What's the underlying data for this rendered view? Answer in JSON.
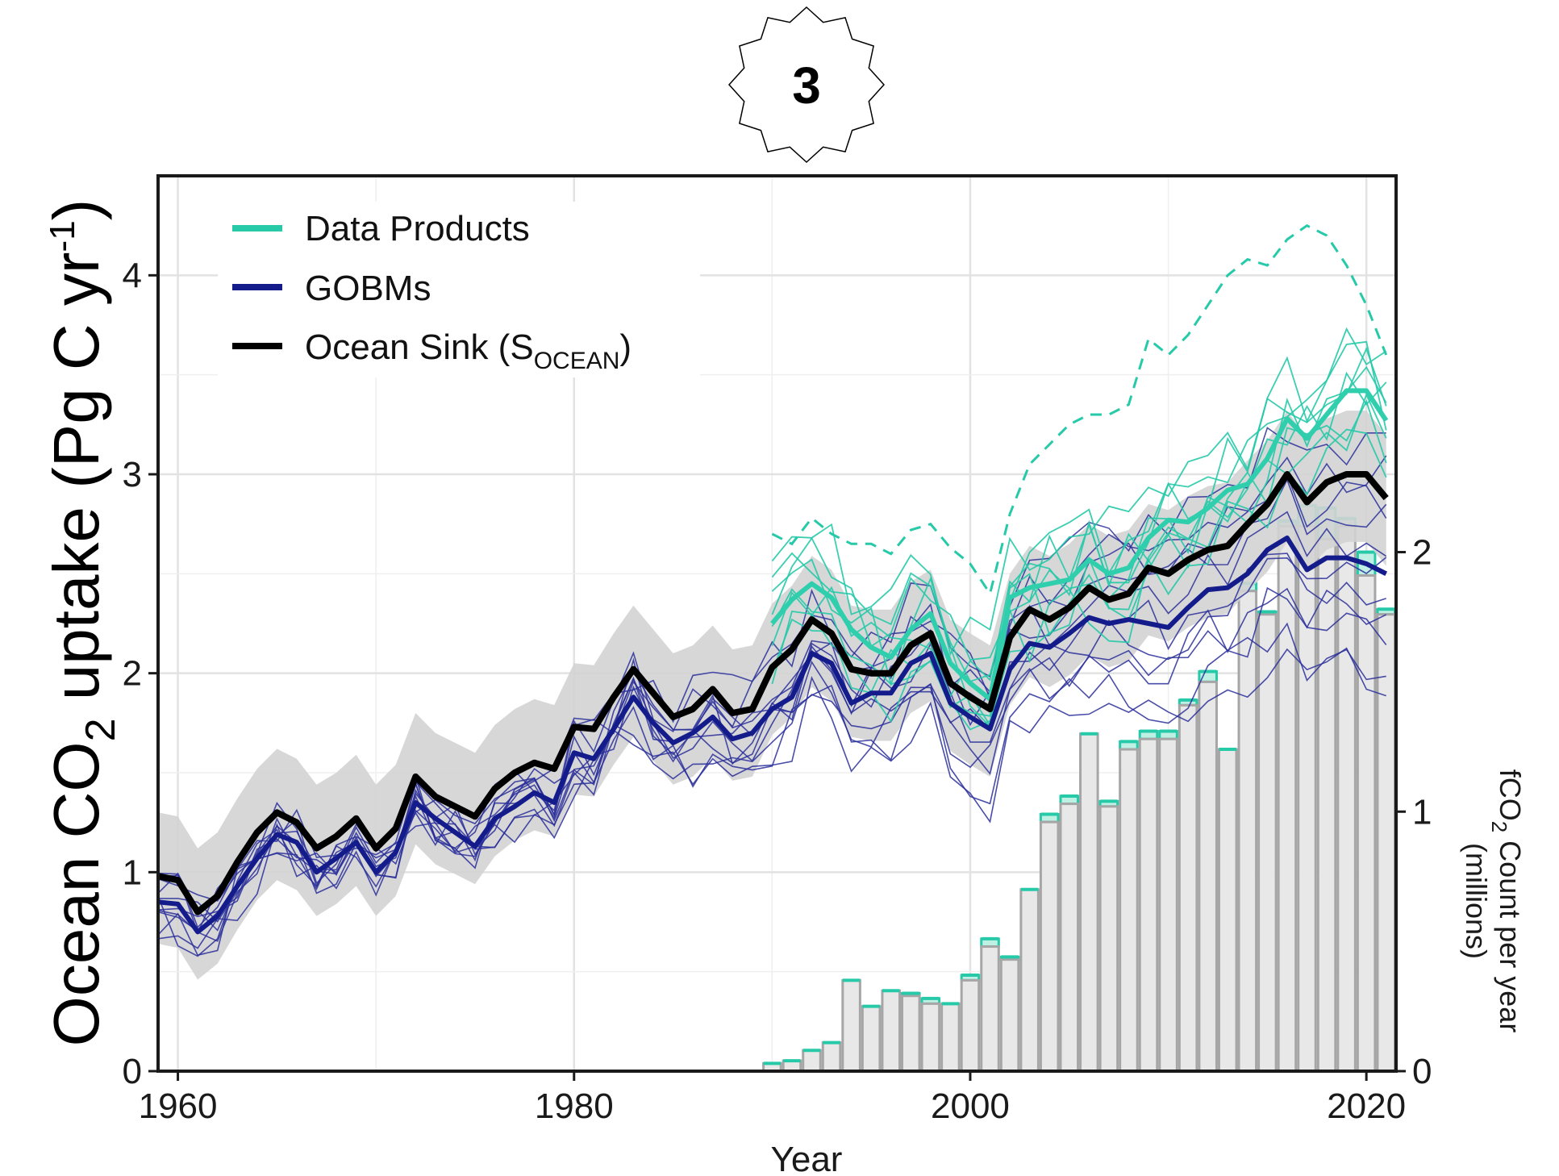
{
  "badge": {
    "label": "3"
  },
  "chart_data": {
    "type": "line",
    "xlabel": "Year",
    "ylabel": "Ocean CO2 uptake (Pg C yr-1)",
    "ylabel_parts": {
      "a": "Ocean CO",
      "sub": "2",
      "b": " uptake (Pg C yr",
      "sup": "-1",
      "c": ")"
    },
    "y2label_parts": {
      "line1a": "fCO",
      "line1sub": "2",
      "line1b": " Count per year",
      "line2": "(millions)"
    },
    "xlim": [
      1959,
      2021.5
    ],
    "ylim": [
      0,
      4.5
    ],
    "y2lim": [
      0,
      3.45
    ],
    "xticks": [
      1960,
      1980,
      2000,
      2020
    ],
    "yticks": [
      0,
      1,
      2,
      3,
      4
    ],
    "y2ticks": [
      0,
      1,
      2
    ],
    "grid": true,
    "legend_position": "top-left",
    "colors": {
      "data_products": "#26c9a8",
      "gobms": "#141c8c",
      "ocean_sink": "#000000",
      "band": "#d3d3d3",
      "bars": "#e8e8e8"
    },
    "legend": [
      {
        "key": "data_products",
        "label": "Data Products",
        "color": "#26c9a8"
      },
      {
        "key": "gobms",
        "label": "GOBMs",
        "color": "#141c8c"
      },
      {
        "key": "ocean_sink",
        "label": "Ocean Sink (S",
        "sub": "OCEAN",
        "tail": ")",
        "color": "#000000"
      }
    ],
    "series": [
      {
        "name": "Ocean Sink (SOCEAN)",
        "key": "ocean_sink",
        "x": [
          1959,
          1960,
          1961,
          1962,
          1963,
          1964,
          1965,
          1966,
          1967,
          1968,
          1969,
          1970,
          1971,
          1972,
          1973,
          1974,
          1975,
          1976,
          1977,
          1978,
          1979,
          1980,
          1981,
          1982,
          1983,
          1984,
          1985,
          1986,
          1987,
          1988,
          1989,
          1990,
          1991,
          1992,
          1993,
          1994,
          1995,
          1996,
          1997,
          1998,
          1999,
          2000,
          2001,
          2002,
          2003,
          2004,
          2005,
          2006,
          2007,
          2008,
          2009,
          2010,
          2011,
          2012,
          2013,
          2014,
          2015,
          2016,
          2017,
          2018,
          2019,
          2020,
          2021
        ],
        "y": [
          0.98,
          0.96,
          0.8,
          0.88,
          1.05,
          1.2,
          1.3,
          1.25,
          1.12,
          1.18,
          1.27,
          1.12,
          1.22,
          1.48,
          1.38,
          1.33,
          1.28,
          1.42,
          1.5,
          1.55,
          1.52,
          1.73,
          1.72,
          1.88,
          2.02,
          1.9,
          1.78,
          1.82,
          1.92,
          1.8,
          1.82,
          2.03,
          2.12,
          2.27,
          2.2,
          2.02,
          2.0,
          2.0,
          2.14,
          2.2,
          1.95,
          1.88,
          1.82,
          2.18,
          2.32,
          2.27,
          2.33,
          2.43,
          2.37,
          2.4,
          2.53,
          2.5,
          2.57,
          2.62,
          2.64,
          2.75,
          2.85,
          3.0,
          2.86,
          2.96,
          3.0,
          3.0,
          2.88
        ]
      },
      {
        "name": "GOBMs",
        "key": "gobms",
        "x": [
          1959,
          1960,
          1961,
          1962,
          1963,
          1964,
          1965,
          1966,
          1967,
          1968,
          1969,
          1970,
          1971,
          1972,
          1973,
          1974,
          1975,
          1976,
          1977,
          1978,
          1979,
          1980,
          1981,
          1982,
          1983,
          1984,
          1985,
          1986,
          1987,
          1988,
          1989,
          1990,
          1991,
          1992,
          1993,
          1994,
          1995,
          1996,
          1997,
          1998,
          1999,
          2000,
          2001,
          2002,
          2003,
          2004,
          2005,
          2006,
          2007,
          2008,
          2009,
          2010,
          2011,
          2012,
          2013,
          2014,
          2015,
          2016,
          2017,
          2018,
          2019,
          2020,
          2021
        ],
        "y": [
          0.85,
          0.84,
          0.7,
          0.78,
          0.93,
          1.07,
          1.19,
          1.15,
          1.0,
          1.07,
          1.15,
          1.0,
          1.1,
          1.35,
          1.27,
          1.2,
          1.13,
          1.27,
          1.33,
          1.4,
          1.35,
          1.6,
          1.57,
          1.72,
          1.88,
          1.75,
          1.65,
          1.7,
          1.78,
          1.67,
          1.7,
          1.82,
          1.88,
          2.1,
          2.05,
          1.85,
          1.9,
          1.9,
          2.05,
          2.1,
          1.85,
          1.78,
          1.72,
          2.02,
          2.15,
          2.13,
          2.2,
          2.28,
          2.25,
          2.27,
          2.25,
          2.23,
          2.33,
          2.42,
          2.43,
          2.5,
          2.62,
          2.68,
          2.52,
          2.58,
          2.58,
          2.55,
          2.5
        ]
      },
      {
        "name": "Data Products",
        "key": "data_products",
        "x": [
          1990,
          1991,
          1992,
          1993,
          1994,
          1995,
          1996,
          1997,
          1998,
          1999,
          2000,
          2001,
          2002,
          2003,
          2004,
          2005,
          2006,
          2007,
          2008,
          2009,
          2010,
          2011,
          2012,
          2013,
          2014,
          2015,
          2016,
          2017,
          2018,
          2019,
          2020,
          2021
        ],
        "y": [
          2.25,
          2.37,
          2.45,
          2.38,
          2.22,
          2.13,
          2.08,
          2.22,
          2.3,
          2.05,
          1.95,
          1.87,
          2.38,
          2.43,
          2.45,
          2.47,
          2.57,
          2.5,
          2.53,
          2.68,
          2.77,
          2.76,
          2.83,
          2.92,
          2.95,
          3.08,
          3.28,
          3.18,
          3.3,
          3.42,
          3.42,
          3.27
        ]
      },
      {
        "name": "dashed",
        "key": "data_products_dashed",
        "x": [
          1990,
          1991,
          1992,
          1993,
          1994,
          1995,
          1996,
          1997,
          1998,
          1999,
          2000,
          2001,
          2002,
          2003,
          2004,
          2005,
          2006,
          2007,
          2008,
          2009,
          2010,
          2011,
          2012,
          2013,
          2014,
          2015,
          2016,
          2017,
          2018,
          2019,
          2020,
          2021
        ],
        "y": [
          2.7,
          2.65,
          2.78,
          2.7,
          2.65,
          2.65,
          2.6,
          2.72,
          2.75,
          2.63,
          2.55,
          2.4,
          2.8,
          3.05,
          3.15,
          3.25,
          3.3,
          3.3,
          3.35,
          3.68,
          3.6,
          3.7,
          3.85,
          4.0,
          4.08,
          4.05,
          4.18,
          4.25,
          4.2,
          4.05,
          3.85,
          3.6
        ]
      }
    ],
    "bars": {
      "x": [
        1990,
        1991,
        1992,
        1993,
        1994,
        1995,
        1996,
        1997,
        1998,
        1999,
        2000,
        2001,
        2002,
        2003,
        2004,
        2005,
        2006,
        2007,
        2008,
        2009,
        2010,
        2011,
        2012,
        2013,
        2014,
        2015,
        2016,
        2017,
        2018,
        2019,
        2020,
        2021
      ],
      "values": [
        0.03,
        0.04,
        0.08,
        0.11,
        0.35,
        0.25,
        0.31,
        0.29,
        0.26,
        0.26,
        0.35,
        0.48,
        0.43,
        0.7,
        0.96,
        1.03,
        1.3,
        1.02,
        1.24,
        1.28,
        1.28,
        1.41,
        1.5,
        1.24,
        1.85,
        1.76,
        2.1,
        2.1,
        2.05,
        2.1,
        1.91,
        1.76
      ],
      "fco2_values": [
        0.03,
        0.04,
        0.08,
        0.11,
        0.35,
        0.25,
        0.31,
        0.3,
        0.28,
        0.26,
        0.37,
        0.51,
        0.44,
        0.7,
        0.99,
        1.06,
        1.3,
        1.04,
        1.27,
        1.31,
        1.31,
        1.43,
        1.54,
        1.24,
        1.88,
        1.77,
        2.12,
        2.18,
        2.17,
        2.13,
        2.0,
        1.78
      ]
    }
  }
}
